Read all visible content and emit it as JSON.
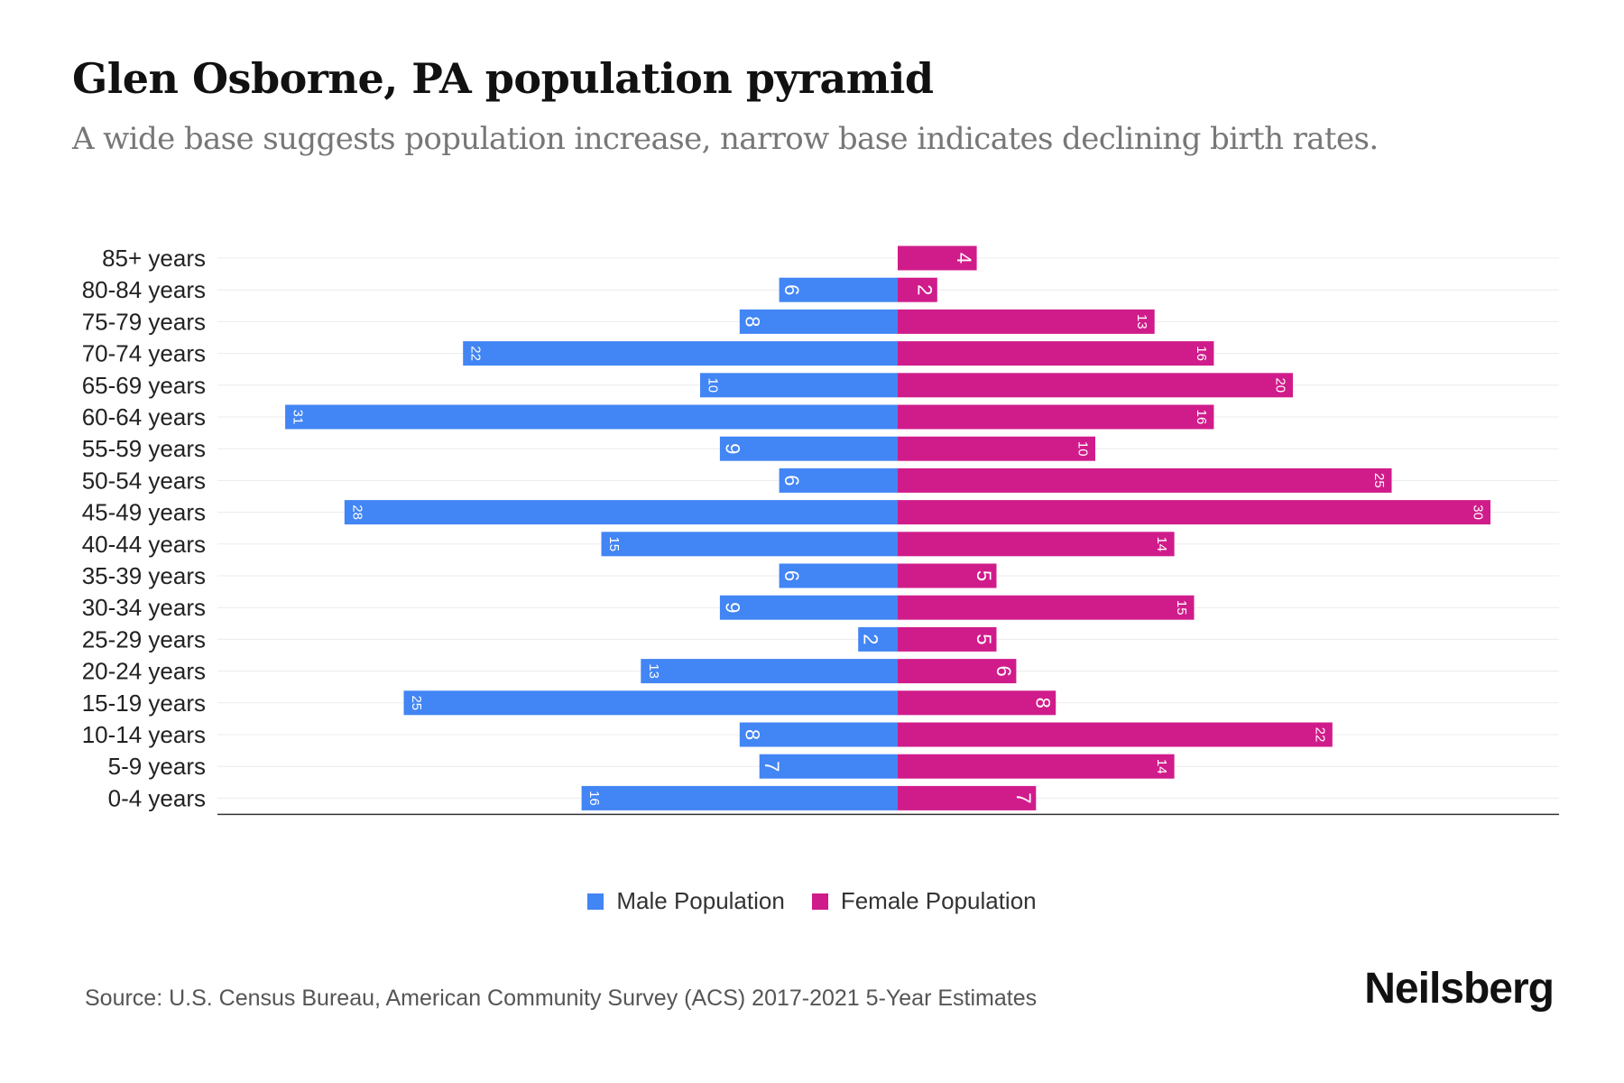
{
  "title": "Glen Osborne, PA population pyramid",
  "subtitle": "A wide base suggests population increase, narrow base indicates declining birth rates.",
  "source": "Source: U.S. Census Bureau, American Community Survey (ACS) 2017-2021 5-Year Estimates",
  "brand": "Neilsberg",
  "colors": {
    "male": "#4285F4",
    "female": "#D01C8B"
  },
  "chart_data": {
    "type": "bar",
    "orientation": "horizontal-pyramid",
    "title": "Glen Osborne, PA population pyramid",
    "categories": [
      "85+ years",
      "80-84 years",
      "75-79 years",
      "70-74 years",
      "65-69 years",
      "60-64 years",
      "55-59 years",
      "50-54 years",
      "45-49 years",
      "40-44 years",
      "35-39 years",
      "30-34 years",
      "25-29 years",
      "20-24 years",
      "15-19 years",
      "10-14 years",
      "5-9 years",
      "0-4 years"
    ],
    "series": [
      {
        "name": "Male Population",
        "values": [
          0,
          6,
          8,
          22,
          10,
          31,
          9,
          6,
          28,
          15,
          6,
          9,
          2,
          13,
          25,
          8,
          7,
          16
        ]
      },
      {
        "name": "Female Population",
        "values": [
          4,
          2,
          13,
          16,
          20,
          16,
          10,
          25,
          30,
          14,
          5,
          15,
          5,
          6,
          8,
          22,
          14,
          7
        ]
      }
    ],
    "xlim": [
      -34,
      34
    ],
    "legend": "bottom-center"
  }
}
